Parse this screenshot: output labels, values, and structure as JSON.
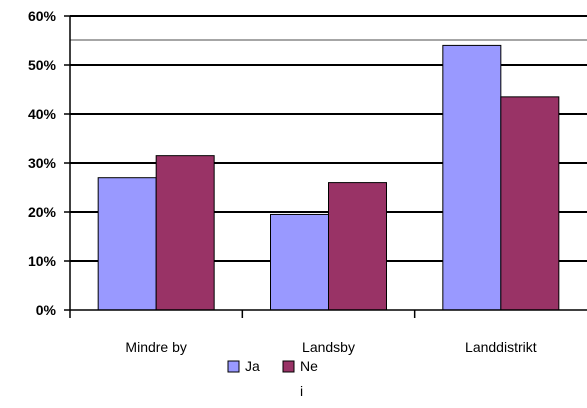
{
  "chart_data": {
    "type": "bar",
    "categories": [
      "Mindre by",
      "Landsby",
      "Landdistrikt"
    ],
    "series": [
      {
        "name": "Ja",
        "values": [
          27,
          19.5,
          54
        ],
        "color": "#9999ff"
      },
      {
        "name": "Ne\ni",
        "values": [
          31.5,
          26,
          43.5
        ],
        "color": "#993366"
      }
    ],
    "ylim": [
      0,
      60
    ],
    "yticks": [
      0,
      10,
      20,
      30,
      40,
      50,
      60
    ],
    "ytick_labels": [
      "0%",
      "10%",
      "20%",
      "30%",
      "40%",
      "50%",
      "60%"
    ],
    "grid": true,
    "legend_position": "bottom-center"
  }
}
